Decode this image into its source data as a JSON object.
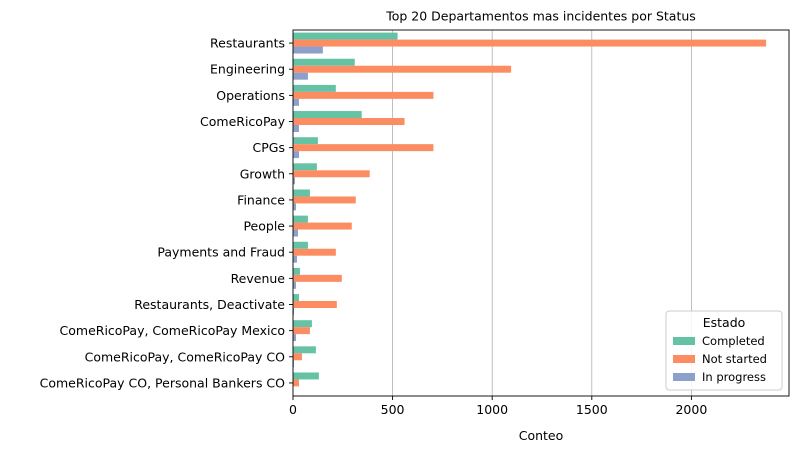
{
  "chart_data": {
    "type": "bar",
    "orientation": "horizontal",
    "title": "Top 20 Departamentos mas incidentes por Status",
    "xlabel": "Conteo",
    "ylabel": "",
    "xlim": [
      0,
      2490
    ],
    "xticks": [
      0,
      500,
      1000,
      1500,
      2000
    ],
    "grid": "x",
    "legend_title": "Estado",
    "legend_position": "lower-right",
    "categories": [
      "Restaurants",
      "Engineering",
      "Operations",
      "ComeRicoPay",
      "CPGs",
      "Growth",
      "Finance",
      "People",
      "Payments and Fraud",
      "Revenue",
      "Restaurants, Deactivate",
      "ComeRicoPay, ComeRicoPay Mexico",
      "ComeRicoPay, ComeRicoPay CO",
      "ComeRicoPay CO, Personal Bankers CO"
    ],
    "series": [
      {
        "name": "Completed",
        "color": "#66c2a5",
        "values": [
          525,
          310,
          215,
          345,
          125,
          120,
          85,
          75,
          75,
          35,
          30,
          95,
          115,
          130
        ]
      },
      {
        "name": "Not started",
        "color": "#fc8d62",
        "values": [
          2375,
          1095,
          705,
          560,
          705,
          385,
          315,
          295,
          215,
          245,
          220,
          85,
          45,
          30
        ]
      },
      {
        "name": "In progress",
        "color": "#8da0cb",
        "values": [
          150,
          75,
          30,
          30,
          30,
          10,
          15,
          25,
          20,
          15,
          5,
          15,
          5,
          0
        ]
      }
    ]
  }
}
